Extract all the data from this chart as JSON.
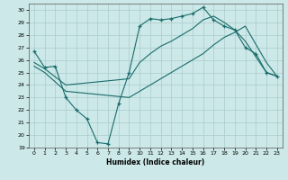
{
  "title": "",
  "xlabel": "Humidex (Indice chaleur)",
  "xlim": [
    -0.5,
    23.5
  ],
  "ylim": [
    19,
    30.5
  ],
  "yticks": [
    19,
    20,
    21,
    22,
    23,
    24,
    25,
    26,
    27,
    28,
    29,
    30
  ],
  "xticks": [
    0,
    1,
    2,
    3,
    4,
    5,
    6,
    7,
    8,
    9,
    10,
    11,
    12,
    13,
    14,
    15,
    16,
    17,
    18,
    19,
    20,
    21,
    22,
    23
  ],
  "bg_color": "#cce8e8",
  "grid_color": "#aacccc",
  "line_color": "#1a6b6b",
  "line1_x": [
    0,
    1,
    2,
    3,
    4,
    5,
    6,
    7,
    8,
    9,
    10,
    11,
    12,
    13,
    14,
    15,
    16,
    17,
    18,
    19,
    20,
    21,
    22,
    23
  ],
  "line1_y": [
    26.7,
    25.4,
    25.5,
    23.0,
    22.0,
    21.3,
    19.4,
    19.3,
    22.5,
    25.0,
    28.7,
    29.3,
    29.2,
    29.3,
    29.5,
    29.7,
    30.2,
    29.2,
    28.7,
    28.4,
    27.0,
    26.5,
    25.0,
    24.7
  ],
  "line2_x": [
    0,
    1,
    3,
    9,
    10,
    11,
    12,
    13,
    14,
    15,
    16,
    17,
    18,
    19,
    20,
    22,
    23
  ],
  "line2_y": [
    25.8,
    25.3,
    24.0,
    24.5,
    25.8,
    26.5,
    27.1,
    27.5,
    28.0,
    28.5,
    29.2,
    29.5,
    29.0,
    28.4,
    27.5,
    25.0,
    24.7
  ],
  "line3_x": [
    0,
    1,
    3,
    9,
    10,
    11,
    12,
    13,
    14,
    15,
    16,
    17,
    18,
    19,
    20,
    22,
    23
  ],
  "line3_y": [
    25.5,
    25.0,
    23.5,
    23.0,
    23.5,
    24.0,
    24.5,
    25.0,
    25.5,
    26.0,
    26.5,
    27.2,
    27.8,
    28.2,
    28.7,
    25.8,
    24.7
  ]
}
